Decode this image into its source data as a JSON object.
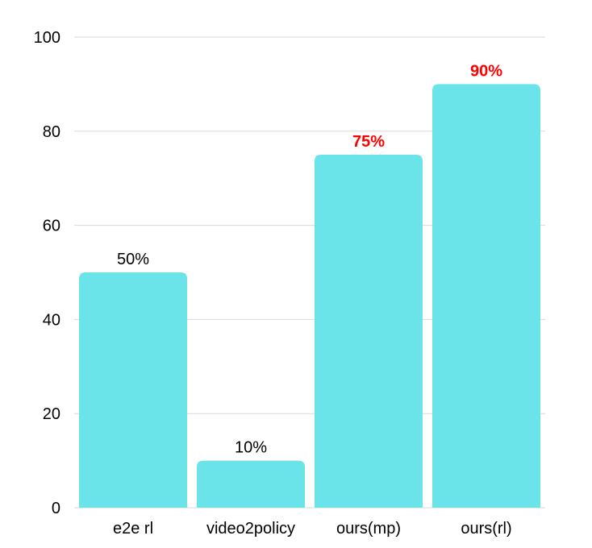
{
  "chart_data": {
    "type": "bar",
    "title": "",
    "xlabel": "",
    "ylabel": "",
    "categories": [
      "e2e rl",
      "video2policy",
      "ours(mp)",
      "ours(rl)"
    ],
    "values": [
      50,
      10,
      75,
      90
    ],
    "data_labels": [
      "50%",
      "10%",
      "75%",
      "90%"
    ],
    "data_label_colors": [
      "#000000",
      "#000000",
      "#ff0000",
      "#ff0000"
    ],
    "data_label_bold": [
      false,
      false,
      true,
      true
    ],
    "ylim": [
      0,
      100
    ],
    "yticks": [
      0,
      20,
      40,
      60,
      80,
      100
    ],
    "ytick_labels": [
      "0",
      "20",
      "40",
      "60",
      "80",
      "100"
    ],
    "grid": true,
    "legend": "none",
    "bar_color": "#6ae4e8"
  }
}
